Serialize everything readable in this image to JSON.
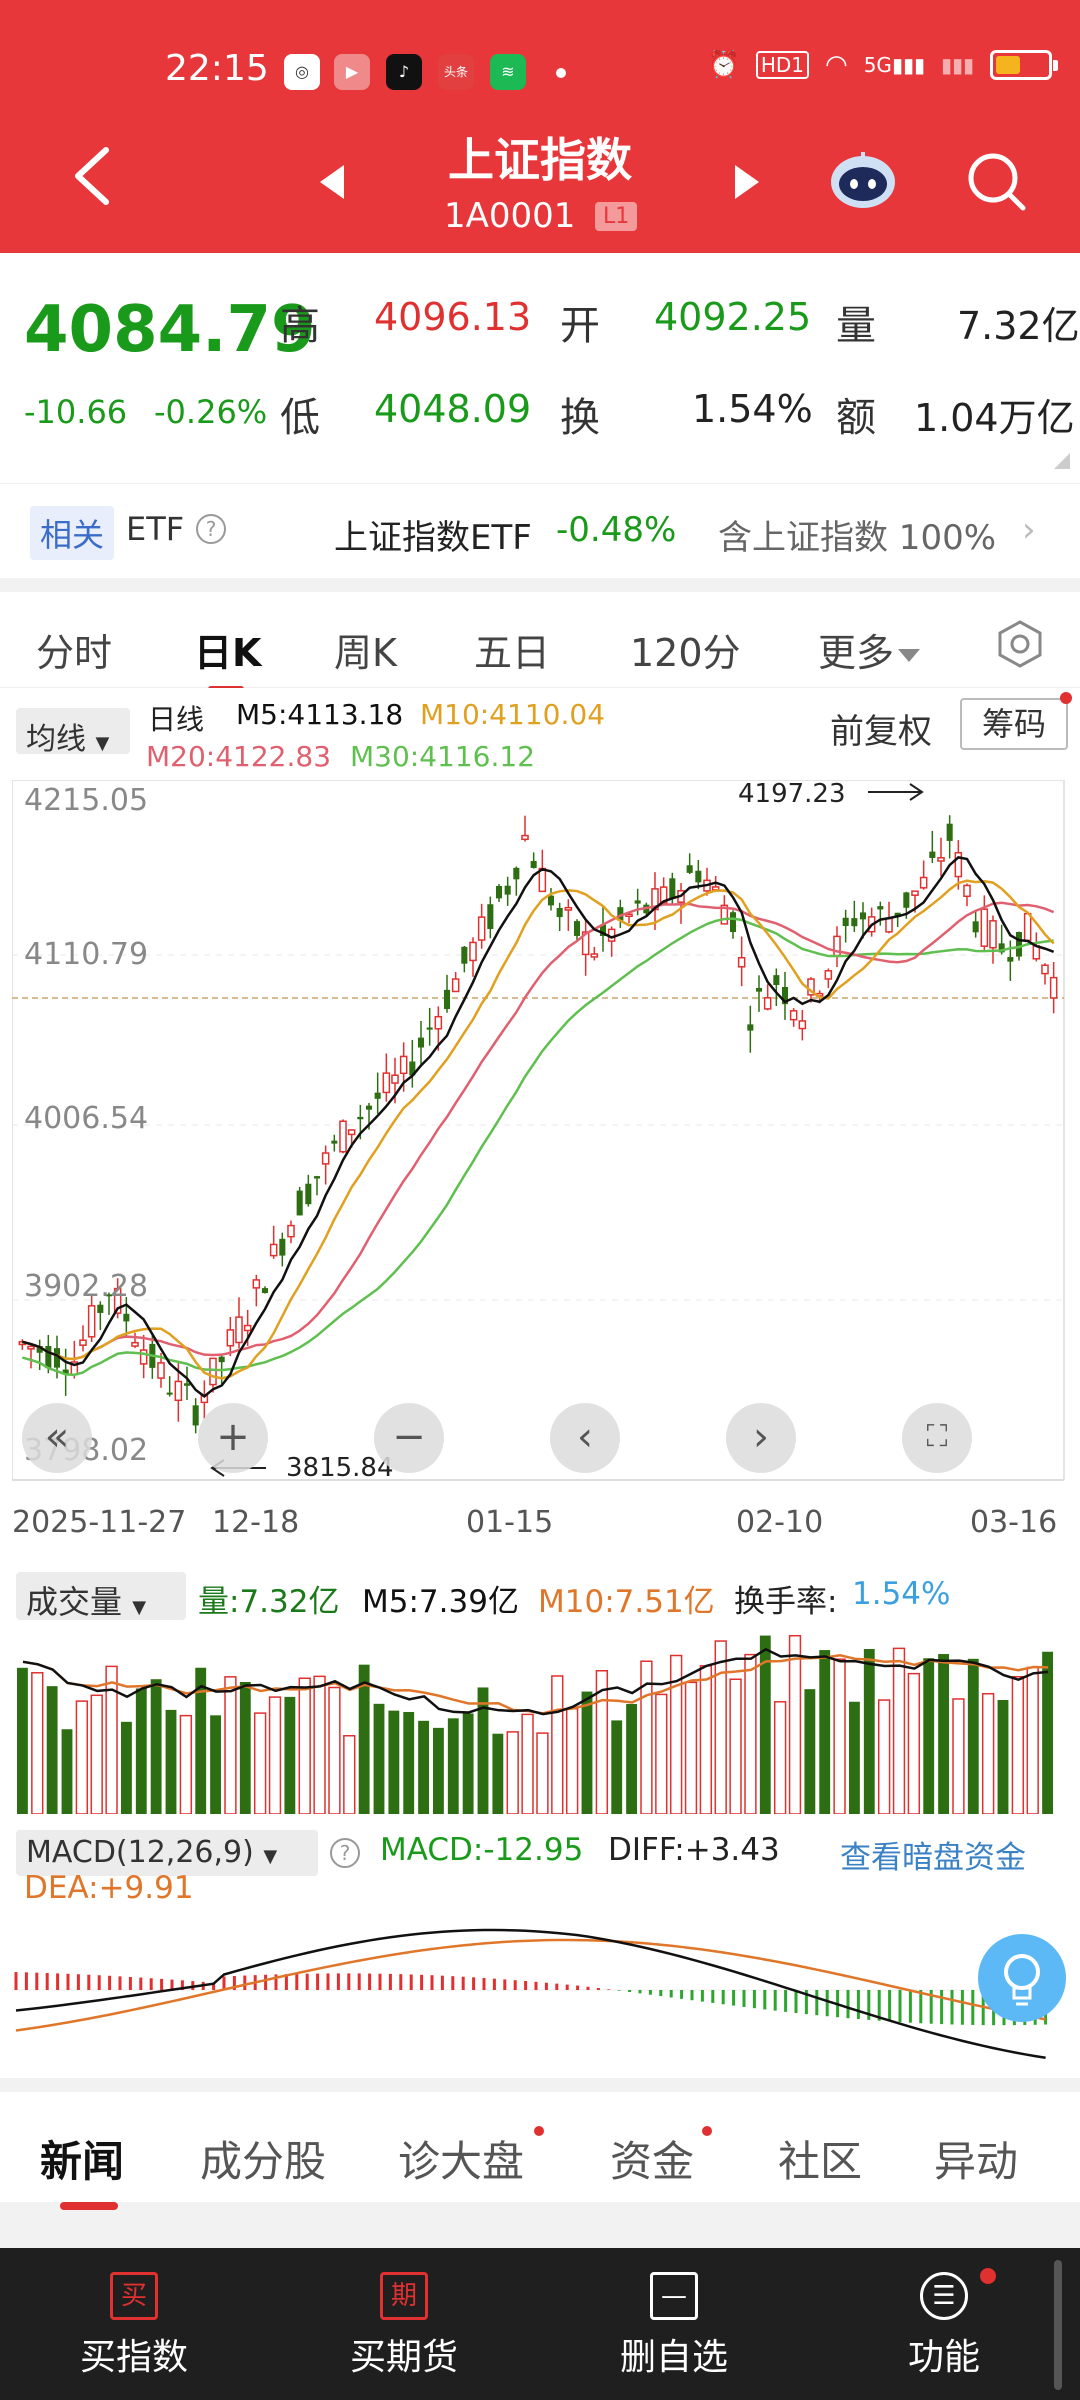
{
  "status": {
    "time": "22:15",
    "network": "5G",
    "hd": "HD1"
  },
  "nav": {
    "title": "上证指数",
    "code": "1A0001",
    "level": "L1"
  },
  "quote": {
    "price": "4084.79",
    "change": "-10.66",
    "change_pct": "-0.26%",
    "high_label": "高",
    "high": "4096.13",
    "low_label": "低",
    "low": "4048.09",
    "open_label": "开",
    "open": "4092.25",
    "turnover_label": "换",
    "turnover": "1.54%",
    "volume_label": "量",
    "volume": "7.32亿",
    "amount_label": "额",
    "amount": "1.04万亿"
  },
  "related": {
    "tag": "相关",
    "etf": "ETF",
    "name": "上证指数ETF",
    "pct": "-0.48%",
    "contain": "含上证指数 100%"
  },
  "tabs": [
    "分时",
    "日K",
    "周K",
    "五日",
    "120分",
    "更多"
  ],
  "active_tab": "日K",
  "ma_bar": {
    "select": "均线",
    "day": "日线",
    "m5": "M5:4113.18",
    "m10": "M10:4110.04",
    "m20": "M20:4122.83",
    "m30": "M30:4116.12",
    "fq": "前复权",
    "chip": "筹码"
  },
  "kline": {
    "y_ticks": [
      "4215.05",
      "4110.79",
      "4006.54",
      "3902.28",
      "3798.02"
    ],
    "x_ticks": [
      "2025-11-27",
      "12-18",
      "01-15",
      "02-10",
      "03-16"
    ],
    "max_label": "4197.23",
    "min_label": "3815.84"
  },
  "volume": {
    "select": "成交量",
    "vol": "量:7.32亿",
    "m5": "M5:7.39亿",
    "m10": "M10:7.51亿",
    "turnover_label": "换手率:",
    "turnover": "1.54%"
  },
  "macd": {
    "select": "MACD(12,26,9)",
    "macd": "MACD:-12.95",
    "diff": "DIFF:+3.43",
    "dea": "DEA:+9.91",
    "link": "查看暗盘资金"
  },
  "news_tabs": [
    "新闻",
    "成分股",
    "诊大盘",
    "资金",
    "社区",
    "异动"
  ],
  "bottom": [
    {
      "icon": "买",
      "label": "买指数"
    },
    {
      "icon": "期",
      "label": "买期货"
    },
    {
      "icon": "—",
      "label": "删自选"
    },
    {
      "icon": "☰",
      "label": "功能"
    }
  ],
  "colors": {
    "up": "#e0302f",
    "down": "#2e6e12",
    "ma5": "#111111",
    "ma10": "#e0a020",
    "ma20": "#e06070",
    "ma30": "#5fbf4f",
    "brand": "#e8373a"
  }
}
